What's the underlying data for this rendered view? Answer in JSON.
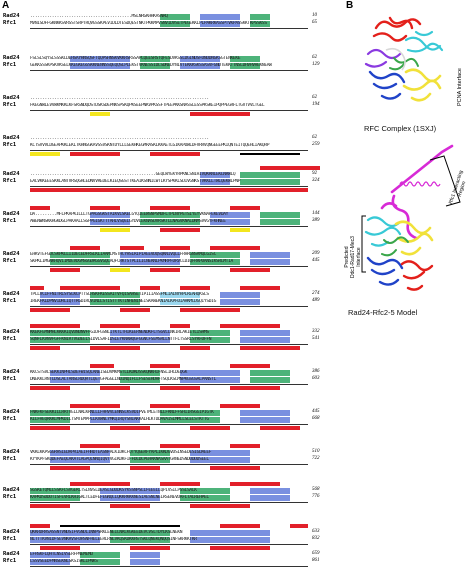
{
  "panels": {
    "a": "A",
    "b": "B"
  },
  "sequence_names": {
    "top": "Rad24",
    "bottom": "Rfc1"
  },
  "blocks": [
    {
      "top_end": "10",
      "bottom_end": "65",
      "top_seq": "..........................................MSLNRGKHHKASNRQ",
      "bottom_seq": "MVNISDFFGKNKKSVRSSTSRPTRQVGSSKPEVIDLDTESDQESTNKTPKKMPVSNVIDVSETPEGEKKLPLPAKRKASSPTVKPASSKKTKPSSKSS"
    },
    {
      "top_end": "62",
      "bottom_end": "129",
      "top_seq": "FSLSLSQYSLSSSKLDEHSAYHNSQSFTQQPSHNSKVKKRSRSSAPLQEESRSTQFESDVKSSLDGINDSFDNDDNGKSGTENKEKE",
      "bottom_seq": "GEKKSSSKPSKVKSELKKEGKEGGSKKNENNSSQEQQSLPLEKSTVKNESSIDLSDNEDYNIVTEKKKSKSSASVFGNDTEKKTTNSLDHVHVHEKNEAW"
    },
    {
      "top_end": "62",
      "bottom_end": "194",
      "top_seq": "..........................................................................",
      "bottom_seq": "FKEGNWLEVVWKMKKLKFSRSNDQDSTDSKSDEPNKSPSKQPKSEEPNKVPKSSFTPEEPKKSNASSLESSPKSKEIPQPPEGRFLTGVTVVLTGEL"
    },
    {
      "top_end": "62",
      "bottom_end": "259",
      "top_seq": "..........................................................................",
      "bottom_seq": "KCTSVVVLDGEAPKKLEKLTKHNGGKAVSSVSKNTDYLLLGEKHKEGMRASKLKKAETLGIKAPDWLDFVRRVQNGEEEPKIQNTEITQQEHLIAKQRP"
    },
    {
      "top_end": "92",
      "bottom_end": "324",
      "top_seq": "....................................................GEQLWYEKYRPKNLSNIHIVQKRNLEKLNRWLQ",
      "bottom_seq": "EALVKKEEESKKLANTVRSQGHLEDNVVREDELKIEQSGSTTKEAIKSNNILWTLKYSPKKLSDIVGNKSTVKKLLTWLQEKWLPNP"
    },
    {
      "top_end": "144",
      "bottom_end": "389",
      "top_seq": "DA.........MFLPKAPKILLLTGPAGSGKSTAIKVLSKELGYQIEEWSNPSMDFLTPLNYPETSIYEYVKNAFEKEVDAY",
      "bottom_seq": "AWENWNSKKHGKDGLPAKAALLSGPPGIGKTTTAHLVSQELGYDVLEKNASDVRSKTLLNAGVKNALDNMSVVGYFKHNEE"
    },
    {
      "top_end": "209",
      "bottom_end": "445",
      "top_seq": "EHKVTEFGDCSKPKLLIIDECEDFRSLKLIAAMLMSTHCYHSLRIPIAEEVDQSQKNIVQLLFRHRGNSRMQLGISC",
      "bottom_seq": "SKPKLIMGNKHQVIIMDEVDGMSGGDRGGVGQLAQFCRKTSTPLILICNERNLPKMRPFDRVCLDIQFRRPDANSIKSRLMTIA"
    },
    {
      "top_end": "274",
      "bottom_end": "489",
      "top_seq": "TPLLVCIFFNITRLSYSLKCPTTSLHSKFKESSAITVFQISAHSETIPIIIASSFMLIALNYHPLREAHQKSLS",
      "bottom_seq": "IREKFKLDPNVIDRLIQTTRGDIRQVINLLSTISTTTKTINHENINEISKAWEKNIALKPFDIAHKMLDGQIYSDIG"
    },
    {
      "top_end": "332",
      "bottom_end": "541",
      "top_seq": "KKEKFEMNMHLKKKKIQVDNDNVFFGIDFGSNLITKTLTHIKEERNENDKFLTSGVLLNKIRLAKIETLISHMS",
      "bottom_seq": "SQNFLKVNVFGFFKNIRTVGDEELSIDVLSAFIDSLEYKNRWQGFGGNCFSEMSRLLNTTFLTSSRLSYRFDFFN"
    },
    {
      "top_end": "386",
      "bottom_end": "603",
      "top_seq": "KKCSTSVLSEKKINPHLSDEFWISQLANEISEDVMKMSTLLKDKDSSKQNKHIFNSLIHCDEQGK",
      "bottom_seq": "DNEKKLRNTLDSLALTANSLRDQRTLQETGFAGGLLNDINQIFLLFSESEHDHFTSQLKSLMNPKGSGSALPANSTL"
    },
    {
      "top_end": "445",
      "bottom_end": "668",
      "top_seq": "FNKFKFSEKKILLRRTVELLNRLKRNLLLFHHVVLENNSLKSVDIPVETMLETNLLFRNLFFSHIIRSGGIPIGTK",
      "bottom_seq": "KILFHEQRKKLMPKDILTSMTEMPPLLKVWNLYMKQIRQYSNIAKKALHLKTDDAVAISLMMLLSLELSTKTTG"
    },
    {
      "top_end": "510",
      "bottom_end": "722",
      "top_seq": "VKKLKKPSGGRHSIEDAPRIAEIFHHDTEASNFALKIDKCFQTYQGERFYAPLIKKDGVDSINSEDESIGDAEEF",
      "bottom_seq": "KYYKPFSKQDEFAEQLAKATLAGPQLNNQIQVTVGIKDKFIFFDLDLPEHAKNASAATGRNEDSNDDDDDSEEL"
    },
    {
      "top_end": "568",
      "bottom_end": "776",
      "top_seq": "SGSKETQMLLSSKFLSVGERLTSLNVSLDEASLGDDDKSYKSSNPSLLFEEELLQPIVSILPSSLSALK",
      "bottom_seq": "KAPKDSDDDTISFEVRLKHIGRLTLEDFEFEGNQLLQKKRKKKNESIAESNLNELRSENEVDAFLTALREHPEL"
    },
    {
      "top_end": "633",
      "bottom_end": "832",
      "top_seq": "QKKRDRRSASSNTVNDSIFVGNDLINNPSRKLENEILNRLKGKEEDEVCVSLTDYLKSLNEKN",
      "bottom_seq": "NLTTTKVNIDFSEVNKRVSFDHSNFHELEERLRNLVKQSKDKKHSTSKLQNEKQNQQSINFSKRKKTKR"
    },
    {
      "top_end": "659",
      "bottom_end": "861",
      "top_seq": "EFHSKFLQHTLNSIVSERFPNEMEMD",
      "bottom_seq": "LSSVSEEDFMNSEKNLSKSISKLIPNKS"
    }
  ],
  "panel_b": {
    "top_caption": "RFC Complex (1SXJ)",
    "top_side_label": "PCNA Interface",
    "bottom_caption": "Rad24-Rfc2-5 Model",
    "region_label_line1": "Rfc1 Interacting",
    "region_label_line2": "Region",
    "interface_label_line1": "Predicted",
    "interface_label_line2": "Ddc1-Rad17-Mec3",
    "interface_label_line3": "Interface"
  },
  "colors": {
    "helix": "#e2202a",
    "strand": "#f3e61f",
    "coil": "#000000",
    "identical_green": "#4db37a",
    "similar_blue": "#7a90e0",
    "weak_cyan": "#9ad7ee",
    "ribbon_magenta": "#d72ad6",
    "ribbon_cyan": "#38c9d6",
    "ribbon_yellow": "#f1e13a",
    "ribbon_blue": "#2043c8",
    "ribbon_red": "#e3201b",
    "ribbon_purple": "#8a3ae0"
  }
}
